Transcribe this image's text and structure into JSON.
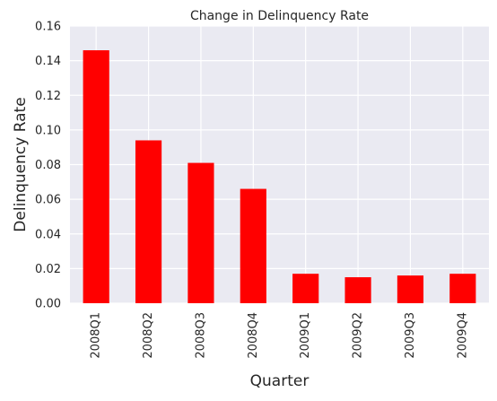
{
  "chart_data": {
    "type": "bar",
    "title": "Change in Delinquency Rate",
    "xlabel": "Quarter",
    "ylabel": "Delinquency Rate",
    "categories": [
      "2008Q1",
      "2008Q2",
      "2008Q3",
      "2008Q4",
      "2009Q1",
      "2009Q2",
      "2009Q3",
      "2009Q4"
    ],
    "values": [
      0.146,
      0.094,
      0.081,
      0.066,
      0.017,
      0.015,
      0.016,
      0.017
    ],
    "ylim": [
      0,
      0.16
    ],
    "yticks": [
      "0.00",
      "0.02",
      "0.04",
      "0.06",
      "0.08",
      "0.10",
      "0.12",
      "0.14",
      "0.16"
    ],
    "bar_color": "#ff0000",
    "background_color": "#eaeaf2",
    "grid_color": "#ffffff",
    "grid": true,
    "legend": "none"
  }
}
